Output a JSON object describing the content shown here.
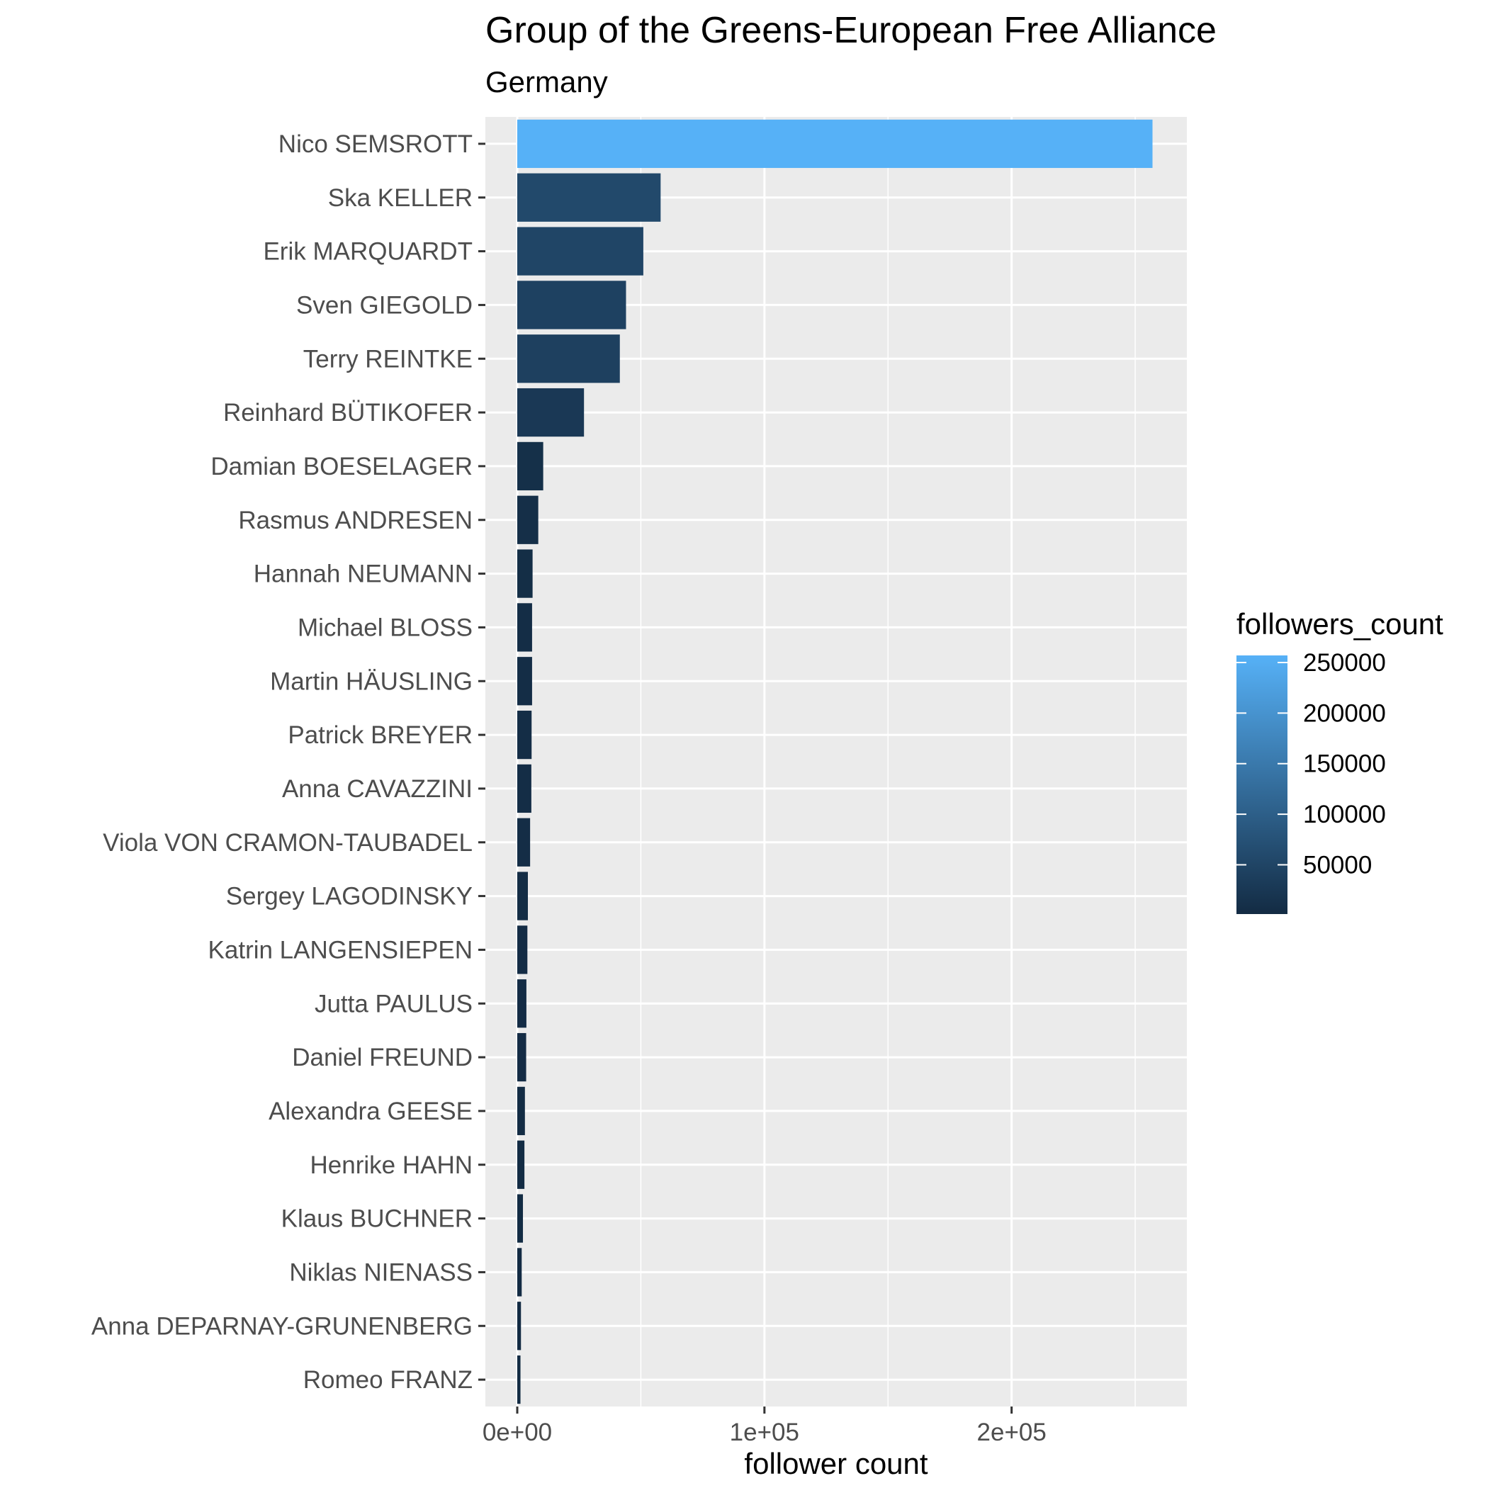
{
  "chart_data": {
    "type": "bar",
    "orientation": "horizontal",
    "title": "Group of the Greens-European Free Alliance",
    "subtitle": "Germany",
    "xlabel": "follower count",
    "ylabel": "",
    "xlim": [
      -12900,
      270900
    ],
    "x_ticks": [
      {
        "value": 0,
        "label": "0e+00"
      },
      {
        "value": 100000,
        "label": "1e+05"
      },
      {
        "value": 200000,
        "label": "2e+05"
      }
    ],
    "x_minor_ticks": [
      50000,
      150000,
      250000
    ],
    "grid": true,
    "categories": [
      "Nico SEMSROTT",
      "Ska KELLER",
      "Erik MARQUARDT",
      "Sven GIEGOLD",
      "Terry REINTKE",
      "Reinhard BÜTIKOFER",
      "Damian BOESELAGER",
      "Rasmus ANDRESEN",
      "Hannah NEUMANN",
      "Michael BLOSS",
      "Martin HÄUSLING",
      "Patrick BREYER",
      "Anna CAVAZZINI",
      "Viola VON CRAMON-TAUBADEL",
      "Sergey LAGODINSKY",
      "Katrin LANGENSIEPEN",
      "Jutta PAULUS",
      "Daniel FREUND",
      "Alexandra GEESE",
      "Henrike HAHN",
      "Klaus BUCHNER",
      "Niklas NIENASS",
      "Anna DEPARNAY-GRUNENBERG",
      "Romeo FRANZ"
    ],
    "values": [
      257000,
      58000,
      51000,
      44000,
      41500,
      27000,
      10500,
      8500,
      6200,
      6000,
      6000,
      5800,
      5700,
      5200,
      4300,
      4100,
      3700,
      3600,
      3100,
      2900,
      2300,
      1800,
      1500,
      1300
    ],
    "fill_scale": {
      "name": "followers_count",
      "low_color": "#132b43",
      "high_color": "#56b1f7",
      "domain": [
        1300,
        257000
      ],
      "breaks": [
        {
          "value": 250000,
          "label": "250000"
        },
        {
          "value": 200000,
          "label": "200000"
        },
        {
          "value": 150000,
          "label": "150000"
        },
        {
          "value": 100000,
          "label": "100000"
        },
        {
          "value": 50000,
          "label": "50000"
        }
      ]
    },
    "legend_position": "right",
    "panel_background": "#ebebeb",
    "grid_color": "#ffffff"
  }
}
